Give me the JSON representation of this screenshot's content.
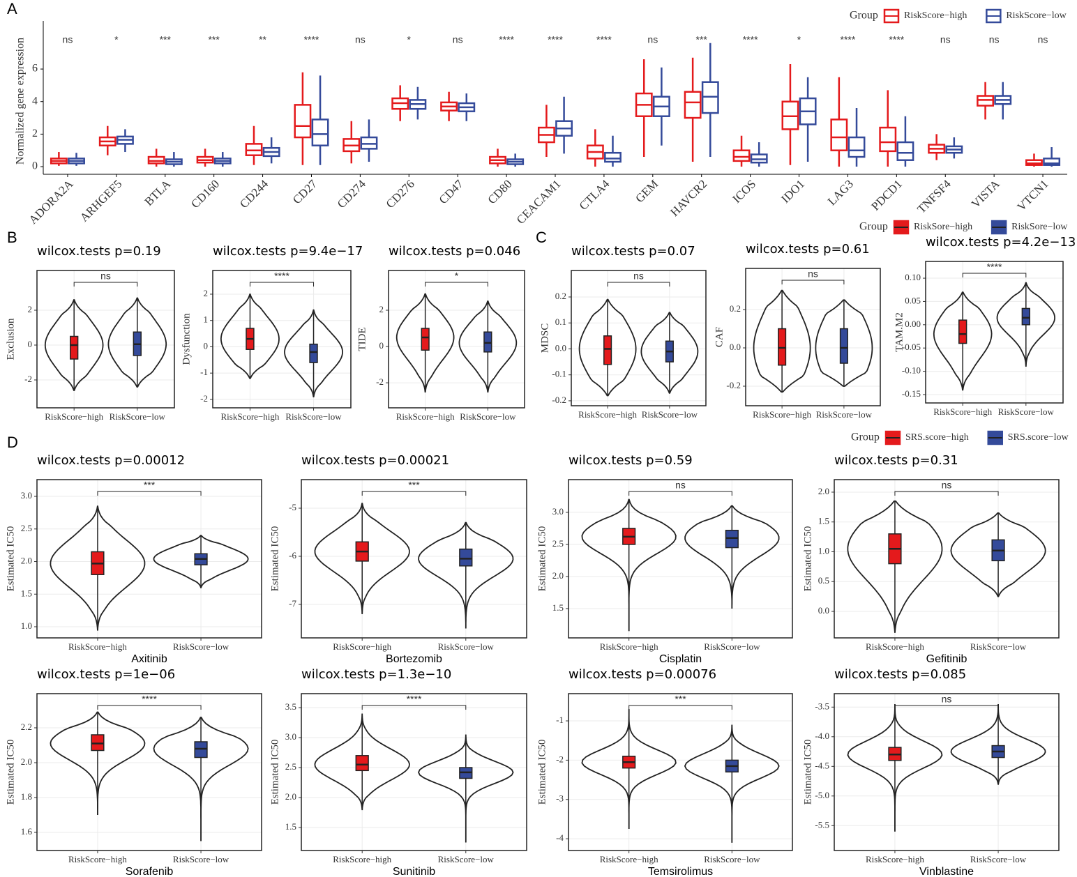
{
  "panel_labels": [
    "A",
    "B",
    "C",
    "D"
  ],
  "legends": [
    {
      "title": "Group",
      "names": [
        "RiskSore−high",
        "RiskSore−low"
      ],
      "colors": [
        "#e41a1c",
        "#344a9a"
      ]
    },
    {
      "title": "Group",
      "names": [
        "SRS.score−high",
        "SRS.score−low"
      ],
      "colors": [
        "#e41a1c",
        "#344a9a"
      ]
    }
  ],
  "chart_data": [
    {
      "type": "box",
      "ylabel": "Normalized gene expression",
      "legend_title": "Group",
      "categories": [
        "ADORA2A",
        "ARHGEF5",
        "BTLA",
        "CD160",
        "CD244",
        "CD27",
        "CD274",
        "CD276",
        "CD47",
        "CD80",
        "CEACAM1",
        "CTLA4",
        "GEM",
        "HAVCR2",
        "ICOS",
        "IDO1",
        "LAG3",
        "PDCD1",
        "TNFSF4",
        "VISTA",
        "VTCN1"
      ],
      "significance": [
        "ns",
        "*",
        "***",
        "***",
        "**",
        "****",
        "ns",
        "*",
        "ns",
        "****",
        "****",
        "****",
        "ns",
        "***",
        "****",
        "*",
        "****",
        "****",
        "ns",
        "ns",
        "ns"
      ],
      "ylim": [
        -0.47,
        8.96
      ],
      "yticks": [
        0,
        2,
        4,
        6
      ],
      "series": [
        {
          "name": "RiskScore−high",
          "color": "#e41a1c",
          "boxes": [
            [
              0.05,
              0.2,
              0.35,
              0.5,
              0.9
            ],
            [
              0.7,
              1.3,
              1.55,
              1.8,
              2.5
            ],
            [
              0,
              0.2,
              0.35,
              0.6,
              1.1
            ],
            [
              0,
              0.25,
              0.4,
              0.6,
              1.1
            ],
            [
              0.1,
              0.7,
              1.0,
              1.4,
              2.5
            ],
            [
              0.1,
              1.8,
              2.5,
              3.8,
              5.8
            ],
            [
              0.2,
              0.95,
              1.3,
              1.7,
              2.8
            ],
            [
              2.8,
              3.55,
              3.9,
              4.2,
              5.0
            ],
            [
              2.8,
              3.45,
              3.7,
              3.95,
              4.6
            ],
            [
              0,
              0.2,
              0.4,
              0.6,
              1.1
            ],
            [
              0.6,
              1.5,
              1.95,
              2.4,
              3.8
            ],
            [
              0,
              0.5,
              0.9,
              1.3,
              2.3
            ],
            [
              0.6,
              3.1,
              3.8,
              4.5,
              6.6
            ],
            [
              0.3,
              3.0,
              3.95,
              4.6,
              6.7
            ],
            [
              0,
              0.35,
              0.6,
              1.0,
              1.9
            ],
            [
              0.1,
              2.3,
              3.1,
              4.0,
              6.3
            ],
            [
              0,
              1.0,
              1.8,
              2.9,
              5.5
            ],
            [
              0,
              0.95,
              1.5,
              2.4,
              4.7
            ],
            [
              0.4,
              0.85,
              1.1,
              1.35,
              2.0
            ],
            [
              2.9,
              3.75,
              4.1,
              4.35,
              5.2
            ],
            [
              0,
              0.1,
              0.2,
              0.4,
              0.8
            ]
          ]
        },
        {
          "name": "RiskScore−low",
          "color": "#344a9a",
          "boxes": [
            [
              0.05,
              0.2,
              0.35,
              0.5,
              0.85
            ],
            [
              0.9,
              1.4,
              1.65,
              1.85,
              2.3
            ],
            [
              0,
              0.15,
              0.3,
              0.45,
              0.9
            ],
            [
              0,
              0.2,
              0.35,
              0.5,
              0.9
            ],
            [
              0.2,
              0.65,
              0.9,
              1.15,
              1.8
            ],
            [
              0.1,
              1.3,
              2.0,
              2.9,
              5.6
            ],
            [
              0.3,
              1.1,
              1.4,
              1.8,
              2.9
            ],
            [
              2.9,
              3.55,
              3.85,
              4.1,
              4.9
            ],
            [
              2.8,
              3.4,
              3.65,
              3.9,
              4.5
            ],
            [
              0,
              0.15,
              0.3,
              0.45,
              0.8
            ],
            [
              0.8,
              1.9,
              2.35,
              2.8,
              4.3
            ],
            [
              0,
              0.3,
              0.5,
              0.85,
              1.9
            ],
            [
              1.3,
              3.1,
              3.7,
              4.3,
              6.1
            ],
            [
              0.6,
              3.3,
              4.3,
              5.2,
              7.6
            ],
            [
              0,
              0.25,
              0.45,
              0.75,
              1.5
            ],
            [
              0.3,
              2.6,
              3.4,
              4.2,
              5.5
            ],
            [
              0,
              0.6,
              1.0,
              1.8,
              3.6
            ],
            [
              0,
              0.4,
              0.85,
              1.5,
              3.1
            ],
            [
              0.5,
              0.85,
              1.05,
              1.25,
              1.8
            ],
            [
              2.9,
              3.85,
              4.1,
              4.35,
              5.2
            ],
            [
              0,
              0.1,
              0.2,
              0.5,
              1.2
            ]
          ]
        }
      ]
    },
    {
      "type": "violin",
      "title": "wilcox.tests p=0.19",
      "ylabel": "Exclusion",
      "categories": [
        "RiskScore−high",
        "RiskScore−low"
      ],
      "colors": [
        "#e41a1c",
        "#344a9a"
      ],
      "significance": "ns",
      "ylim": [
        -3.6,
        4.28
      ],
      "yticks": [
        -2,
        0,
        2
      ],
      "boxes": [
        [
          -2.6,
          -0.8,
          0,
          0.5,
          2.6
        ],
        [
          -2.4,
          -0.6,
          0.05,
          0.75,
          2.7
        ]
      ]
    },
    {
      "type": "violin",
      "title": "wilcox.tests p=9.4e−17",
      "ylabel": "Dysfunction",
      "categories": [
        "RiskScore−high",
        "RiskScore−low"
      ],
      "colors": [
        "#e41a1c",
        "#344a9a"
      ],
      "significance": "****",
      "ylim": [
        -2.32,
        2.9
      ],
      "yticks": [
        -2,
        -1,
        0,
        1,
        2
      ],
      "boxes": [
        [
          -1.2,
          -0.1,
          0.3,
          0.7,
          2.0
        ],
        [
          -1.9,
          -0.6,
          -0.2,
          0.1,
          1.4
        ]
      ]
    },
    {
      "type": "violin",
      "title": "wilcox.tests p=0.046",
      "ylabel": "TIDE",
      "categories": [
        "RiskScore−high",
        "RiskScore−low"
      ],
      "colors": [
        "#e41a1c",
        "#344a9a"
      ],
      "significance": "*",
      "ylim": [
        -3.38,
        4.19
      ],
      "yticks": [
        -2,
        0,
        2
      ],
      "boxes": [
        [
          -2.5,
          -0.2,
          0.5,
          1.0,
          2.9
        ],
        [
          -2.5,
          -0.3,
          0.2,
          0.8,
          2.5
        ]
      ]
    },
    {
      "type": "violin",
      "title": "wilcox.tests p=0.07",
      "ylabel": "MDSC",
      "categories": [
        "RiskScore−high",
        "RiskScore−low"
      ],
      "colors": [
        "#e41a1c",
        "#344a9a"
      ],
      "significance": "ns",
      "ylim": [
        -0.219,
        0.302
      ],
      "yticks": [
        -0.2,
        -0.1,
        {
          "value": 0,
          "label": "0.0"
        },
        0.1,
        0.2
      ],
      "boxes": [
        [
          -0.18,
          -0.06,
          0.0,
          0.05,
          0.19
        ],
        [
          -0.17,
          -0.05,
          -0.01,
          0.03,
          0.14
        ]
      ]
    },
    {
      "type": "violin",
      "title": "wilcox.tests p=0.61",
      "ylabel": "CAF",
      "categories": [
        "RiskScore−high",
        "RiskScore−low"
      ],
      "colors": [
        "#e41a1c",
        "#344a9a"
      ],
      "significance": "ns",
      "ylim": [
        -0.302,
        0.415
      ],
      "yticks": [
        -0.2,
        {
          "value": 0,
          "label": "0.0"
        },
        0.2
      ],
      "boxes": [
        [
          -0.23,
          -0.09,
          0.0,
          0.1,
          0.3
        ],
        [
          -0.2,
          -0.08,
          0.0,
          0.1,
          0.25
        ]
      ]
    },
    {
      "type": "violin",
      "title": "wilcox.tests p=4.2e−13",
      "ylabel": "TAM.M2",
      "categories": [
        "RiskScore−high",
        "RiskScore−low"
      ],
      "colors": [
        "#e41a1c",
        "#344a9a"
      ],
      "significance": "****",
      "ylim": [
        -0.168,
        0.136
      ],
      "yticks": [
        -0.15,
        {
          "value": -0.1,
          "label": "-0.10"
        },
        -0.05,
        {
          "value": 0,
          "label": "0.00"
        },
        0.05,
        {
          "value": 0.1,
          "label": "0.10"
        }
      ],
      "boxes": [
        [
          -0.14,
          -0.04,
          -0.02,
          0.01,
          0.07
        ],
        [
          -0.09,
          0.0,
          0.015,
          0.035,
          0.09
        ]
      ]
    },
    {
      "type": "violin",
      "title": "wilcox.tests p=0.00012",
      "ylabel": "Estimated IC50",
      "xlabel": "Axitinib",
      "categories": [
        "RiskScore−high",
        "RiskScore−low"
      ],
      "colors": [
        "#e41a1c",
        "#344a9a"
      ],
      "significance": "***",
      "ylim": [
        0.829,
        3.257
      ],
      "yticks": [
        {
          "value": 1,
          "label": "1.0"
        },
        1.5,
        {
          "value": 2,
          "label": "2.0"
        },
        2.5,
        {
          "value": 3,
          "label": "3.0"
        }
      ],
      "boxes": [
        [
          0.95,
          1.8,
          1.97,
          2.15,
          2.85
        ],
        [
          1.6,
          1.95,
          2.04,
          2.12,
          2.4
        ]
      ]
    },
    {
      "type": "violin",
      "title": "wilcox.tests p=0.00021",
      "ylabel": "Estimated IC50",
      "xlabel": "Bortezomib",
      "categories": [
        "RiskScore−high",
        "RiskScore−low"
      ],
      "colors": [
        "#e41a1c",
        "#344a9a"
      ],
      "significance": "***",
      "ylim": [
        -7.696,
        -4.406
      ],
      "yticks": [
        -7,
        -6,
        -5
      ],
      "boxes": [
        [
          -7.2,
          -6.1,
          -5.9,
          -5.7,
          -4.9
        ],
        [
          -7.5,
          -6.2,
          -6.05,
          -5.85,
          -5.3
        ]
      ]
    },
    {
      "type": "violin",
      "title": "wilcox.tests p=0.59",
      "ylabel": "Estimated IC50",
      "xlabel": "Cisplatin",
      "categories": [
        "RiskScore−high",
        "RiskScore−low"
      ],
      "colors": [
        "#e41a1c",
        "#344a9a"
      ],
      "significance": "ns",
      "ylim": [
        1.043,
        3.51
      ],
      "yticks": [
        1.5,
        {
          "value": 2,
          "label": "2.0"
        },
        2.5,
        {
          "value": 3,
          "label": "3.0"
        }
      ],
      "boxes": [
        [
          1.15,
          2.5,
          2.62,
          2.75,
          3.2
        ],
        [
          1.5,
          2.45,
          2.6,
          2.72,
          3.1
        ]
      ]
    },
    {
      "type": "violin",
      "title": "wilcox.tests p=0.31",
      "ylabel": "Estimated IC50",
      "xlabel": "Gefitinib",
      "categories": [
        "RiskScore−high",
        "RiskScore−low"
      ],
      "colors": [
        "#e41a1c",
        "#344a9a"
      ],
      "significance": "ns",
      "ylim": [
        -0.444,
        2.21
      ],
      "yticks": [
        {
          "value": 0,
          "label": "0.0"
        },
        0.5,
        {
          "value": 1,
          "label": "1.0"
        },
        1.5,
        {
          "value": 2,
          "label": "2.0"
        }
      ],
      "boxes": [
        [
          -0.35,
          0.8,
          1.05,
          1.3,
          1.85
        ],
        [
          0.25,
          0.85,
          1.02,
          1.2,
          1.65
        ]
      ]
    },
    {
      "type": "violin",
      "title": "wilcox.tests p=1e−06",
      "ylabel": "Estimated IC50",
      "xlabel": "Sorafenib",
      "categories": [
        "RiskScore−high",
        "RiskScore−low"
      ],
      "colors": [
        "#e41a1c",
        "#344a9a"
      ],
      "significance": "****",
      "ylim": [
        1.496,
        2.396
      ],
      "yticks": [
        1.6,
        1.8,
        {
          "value": 2,
          "label": "2.0"
        },
        2.2
      ],
      "boxes": [
        [
          1.7,
          2.07,
          2.11,
          2.16,
          2.29
        ],
        [
          1.55,
          2.03,
          2.08,
          2.12,
          2.26
        ]
      ]
    },
    {
      "type": "violin",
      "title": "wilcox.tests p=1.3e−10",
      "ylabel": "Estimated IC50",
      "xlabel": "Sunitinib",
      "categories": [
        "RiskScore−high",
        "RiskScore−low"
      ],
      "colors": [
        "#e41a1c",
        "#344a9a"
      ],
      "significance": "****",
      "ylim": [
        1.116,
        3.733
      ],
      "yticks": [
        1.5,
        {
          "value": 2,
          "label": "2.0"
        },
        2.5,
        {
          "value": 3,
          "label": "3.0"
        },
        3.5
      ],
      "boxes": [
        [
          1.8,
          2.45,
          2.55,
          2.7,
          3.4
        ],
        [
          1.25,
          2.32,
          2.42,
          2.5,
          3.05
        ]
      ]
    },
    {
      "type": "violin",
      "title": "wilcox.tests p=0.00076",
      "ylabel": "Estimated IC50",
      "xlabel": "Temsirolimus",
      "categories": [
        "RiskScore−high",
        "RiskScore−low"
      ],
      "colors": [
        "#e41a1c",
        "#344a9a"
      ],
      "significance": "***",
      "ylim": [
        -4.3,
        -0.307
      ],
      "yticks": [
        -4,
        -3,
        -2,
        -1
      ],
      "boxes": [
        [
          -3.75,
          -2.2,
          -2.05,
          -1.9,
          -0.7
        ],
        [
          -4.1,
          -2.3,
          -2.15,
          -2.0,
          -1.1
        ]
      ]
    },
    {
      "type": "violin",
      "title": "wilcox.tests p=0.085",
      "ylabel": "Estimated IC50",
      "xlabel": "Vinblastine",
      "categories": [
        "RiskScore−high",
        "RiskScore−low"
      ],
      "colors": [
        "#e41a1c",
        "#344a9a"
      ],
      "significance": "ns",
      "ylim": [
        -5.92,
        -3.273
      ],
      "yticks": [
        -5.5,
        {
          "value": -5,
          "label": "-5.0"
        },
        -4.5,
        {
          "value": -4,
          "label": "-4.0"
        },
        -3.5
      ],
      "boxes": [
        [
          -5.6,
          -4.4,
          -4.3,
          -4.18,
          -3.45
        ],
        [
          -4.8,
          -4.35,
          -4.25,
          -4.15,
          -3.45
        ]
      ]
    }
  ]
}
